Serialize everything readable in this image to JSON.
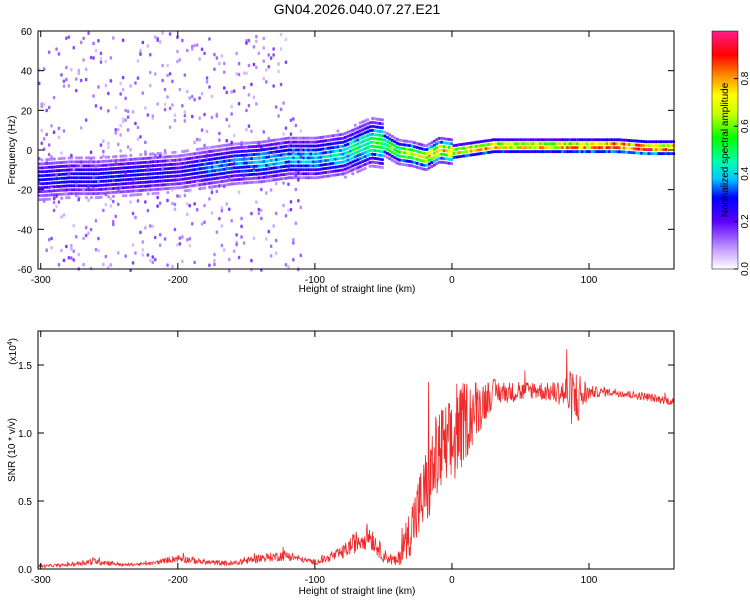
{
  "title": "GN04.2026.040.07.27.E21",
  "chart_data": [
    {
      "type": "heatmap",
      "title": "GN04.2026.040.07.27.E21",
      "xlabel": "Height of straight line (km)",
      "ylabel": "Frequency (Hz)",
      "xlim": [
        -302,
        162
      ],
      "ylim": [
        -60,
        60
      ],
      "xticks": [
        -300,
        -200,
        -100,
        0,
        100
      ],
      "xtick_labels": [
        "-300",
        "-200",
        "-100",
        "0",
        "100"
      ],
      "yticks": [
        -60,
        -40,
        -20,
        0,
        20,
        40,
        60
      ],
      "ytick_labels": [
        "-60",
        "-40",
        "-20",
        "0",
        "20",
        "40",
        "60"
      ],
      "ridge": {
        "x": [
          -300,
          -280,
          -260,
          -240,
          -220,
          -200,
          -180,
          -160,
          -140,
          -120,
          -100,
          -80,
          -70,
          -60,
          -50,
          -40,
          -30,
          -20,
          -10,
          0,
          10,
          20,
          30,
          40,
          60,
          80,
          100,
          120,
          140,
          160
        ],
        "frequency": [
          -15,
          -14,
          -14,
          -13,
          -12,
          -11,
          -9,
          -7,
          -6,
          -4,
          -4,
          -2,
          1,
          4,
          3,
          -1,
          -2,
          -4,
          0,
          -1,
          0,
          1,
          2,
          2,
          2,
          2,
          2,
          2,
          1,
          1
        ],
        "amplitude": [
          0.3,
          0.3,
          0.3,
          0.3,
          0.3,
          0.25,
          0.35,
          0.35,
          0.4,
          0.4,
          0.4,
          0.45,
          0.5,
          0.55,
          0.6,
          0.65,
          0.7,
          0.75,
          0.8,
          0.8,
          0.85,
          0.85,
          0.9,
          0.8,
          0.85,
          0.85,
          0.9,
          1.0,
          1.0,
          0.9
        ]
      },
      "colorbar": {
        "label": "Normalized spectral amplitude",
        "range": [
          0,
          1
        ],
        "ticks": [
          0,
          0.2,
          0.4,
          0.6,
          0.8
        ],
        "tick_labels": [
          "0.0",
          "0.2",
          "0.4",
          "0.6",
          "0.8"
        ]
      }
    },
    {
      "type": "line",
      "xlabel": "Height of straight line (km)",
      "ylabel": "SNR (10 * v/v)",
      "y_scale_label": "(x10",
      "y_scale_exponent": "4",
      "xlim": [
        -302,
        162
      ],
      "ylim": [
        0,
        1.75
      ],
      "xticks": [
        -300,
        -200,
        -100,
        0,
        100
      ],
      "xtick_labels": [
        "-300",
        "-200",
        "-100",
        "0",
        "100"
      ],
      "yticks": [
        0,
        0.5,
        1.0,
        1.5
      ],
      "ytick_labels": [
        "0.0",
        "0.5",
        "1.0",
        "1.5"
      ],
      "series": [
        {
          "name": "SNR",
          "color": "#ee2a2a",
          "x": [
            -302,
            -280,
            -260,
            -240,
            -220,
            -200,
            -180,
            -160,
            -140,
            -120,
            -110,
            -100,
            -90,
            -80,
            -70,
            -60,
            -50,
            -40,
            -30,
            -20,
            -10,
            0,
            10,
            20,
            30,
            40,
            50,
            60,
            70,
            80,
            90,
            100,
            110,
            120,
            130,
            140,
            150,
            162
          ],
          "y": [
            0.02,
            0.03,
            0.06,
            0.03,
            0.04,
            0.08,
            0.05,
            0.04,
            0.08,
            0.1,
            0.07,
            0.05,
            0.08,
            0.12,
            0.2,
            0.25,
            0.1,
            0.05,
            0.3,
            0.55,
            0.85,
            0.9,
            1.1,
            1.2,
            1.3,
            1.3,
            1.3,
            1.32,
            1.3,
            1.3,
            1.25,
            1.3,
            1.3,
            1.3,
            1.28,
            1.27,
            1.25,
            1.23
          ],
          "noise_amplitude": [
            0.01,
            0.01,
            0.03,
            0.01,
            0.01,
            0.03,
            0.02,
            0.02,
            0.03,
            0.04,
            0.02,
            0.02,
            0.03,
            0.05,
            0.08,
            0.1,
            0.05,
            0.04,
            0.2,
            0.3,
            0.35,
            0.35,
            0.3,
            0.2,
            0.1,
            0.08,
            0.07,
            0.07,
            0.07,
            0.1,
            0.25,
            0.05,
            0.03,
            0.03,
            0.03,
            0.03,
            0.03,
            0.03
          ]
        }
      ]
    }
  ]
}
